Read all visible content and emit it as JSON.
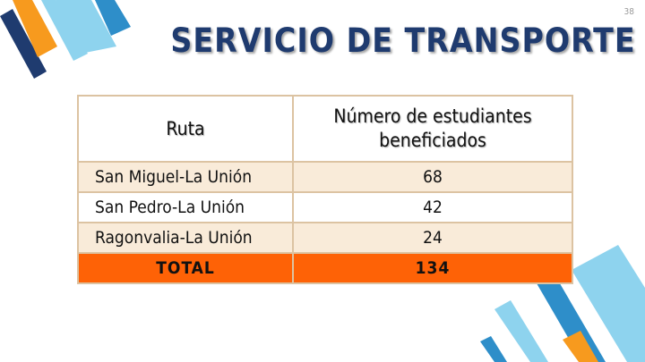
{
  "slide": {
    "number": "38"
  },
  "title": "SERVICIO DE TRANSPORTE",
  "table": {
    "headers": {
      "route": "Ruta",
      "students": "Número de estudiantes beneficiados"
    },
    "rows": [
      {
        "route": "San Miguel-La Unión",
        "students": "68"
      },
      {
        "route": "San Pedro-La Unión",
        "students": "42"
      },
      {
        "route": "Ragonvalia-La Unión",
        "students": "24"
      }
    ],
    "total": {
      "label": "TOTAL",
      "students": "134"
    }
  },
  "colors": {
    "title": "#1f3b6f",
    "total_row": "#fe6206",
    "row_shade": "#f9ebd9",
    "border": "#dcc3a2",
    "stripe_dark": "#1f3b6f",
    "stripe_blue": "#2e8ec9",
    "stripe_light": "#8ed3ee",
    "stripe_orange": "#f79a1e"
  }
}
